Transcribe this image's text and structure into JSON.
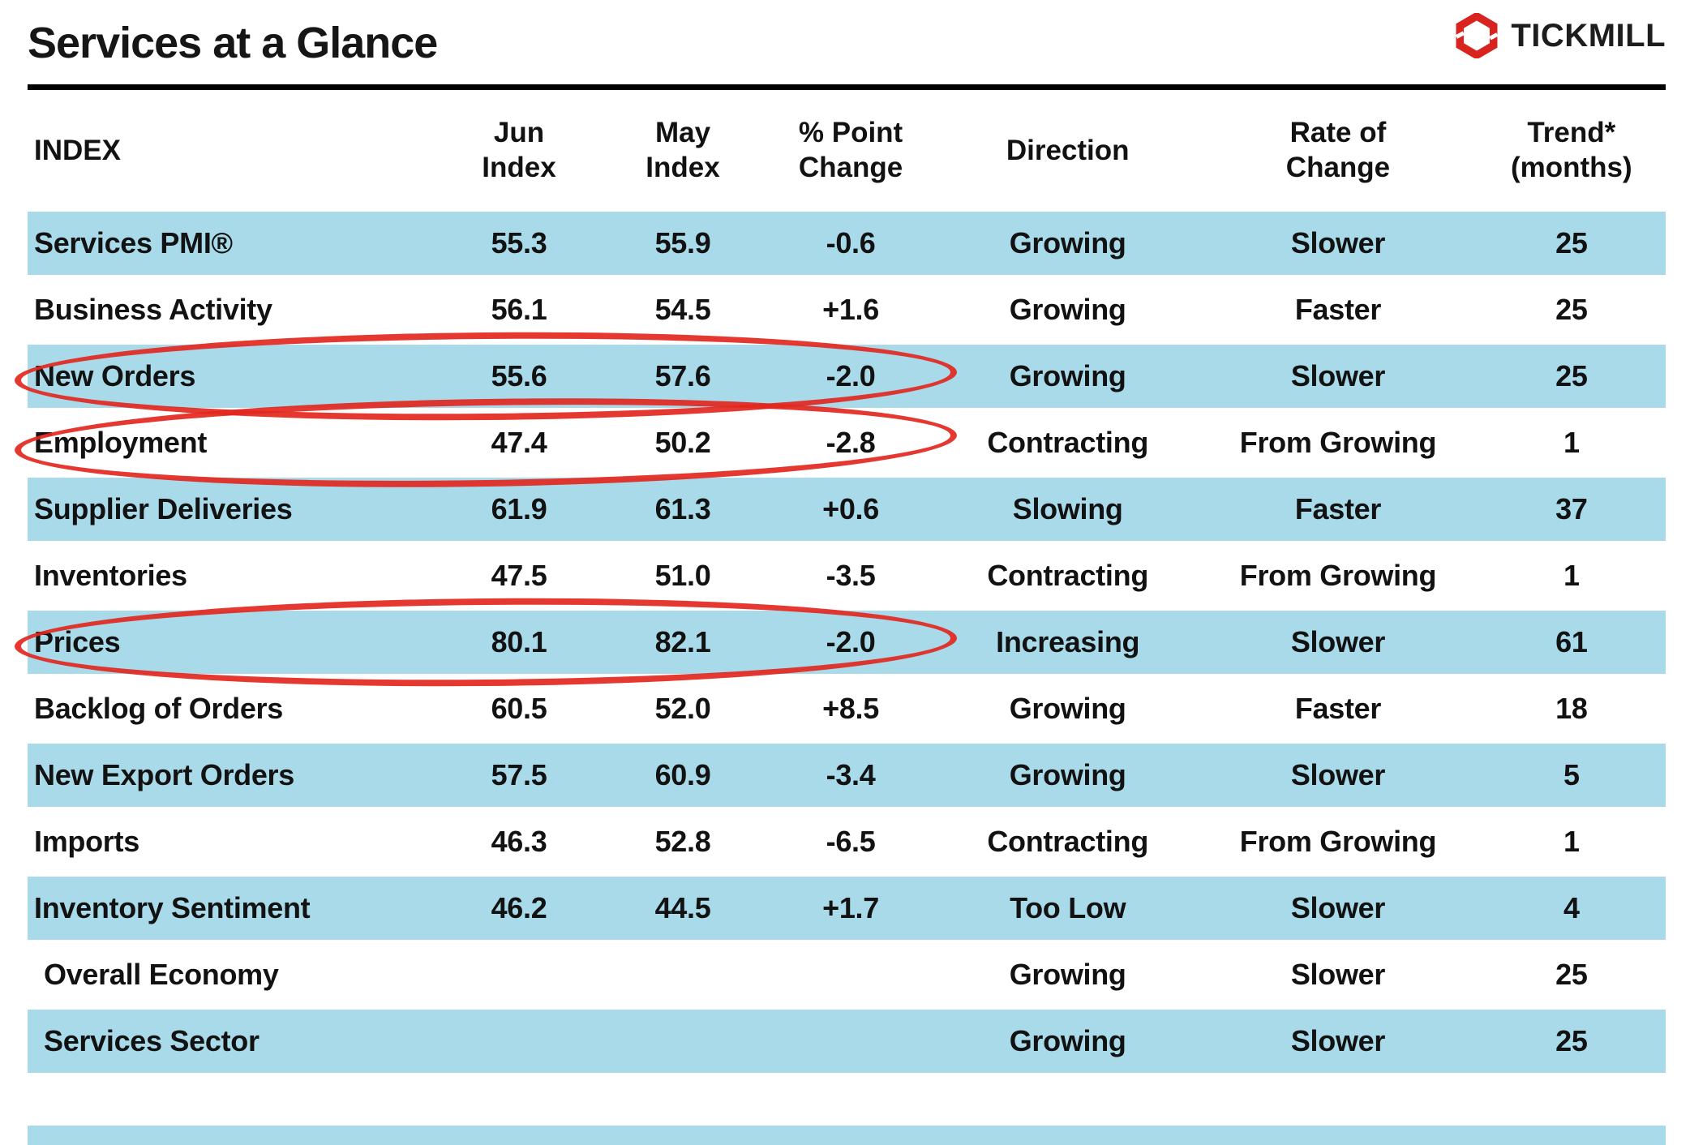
{
  "title": "Services at a Glance",
  "logo": {
    "text": "TICKMILL",
    "icon": "tickmill-hexagon-icon",
    "brand_color": "#d8231f"
  },
  "table": {
    "headers": {
      "index": {
        "l1": "INDEX"
      },
      "jun": {
        "l1": "Jun",
        "l2": "Index"
      },
      "may": {
        "l1": "May",
        "l2": "Index"
      },
      "change": {
        "l1": "% Point",
        "l2": "Change"
      },
      "direction": {
        "l1": "Direction"
      },
      "rate": {
        "l1": "Rate of",
        "l2": "Change"
      },
      "trend": {
        "l1": "Trend*",
        "l2": "(months)"
      }
    },
    "shaded_row_indices": [
      0,
      2,
      4,
      6,
      8,
      10,
      12
    ],
    "bold_row_indices": [
      11,
      12
    ],
    "circled_row_indices": [
      2,
      3,
      6
    ],
    "shade_color": "#a8daea",
    "annotation_color": "#e2271e"
  },
  "chart_data": {
    "type": "table",
    "title": "Services at a Glance",
    "columns": [
      "INDEX",
      "Jun Index",
      "May Index",
      "% Point Change",
      "Direction",
      "Rate of Change",
      "Trend* (months)"
    ],
    "rows": [
      [
        "Services PMI®",
        "55.3",
        "55.9",
        "-0.6",
        "Growing",
        "Slower",
        "25"
      ],
      [
        "Business Activity",
        "56.1",
        "54.5",
        "+1.6",
        "Growing",
        "Faster",
        "25"
      ],
      [
        "New Orders",
        "55.6",
        "57.6",
        "-2.0",
        "Growing",
        "Slower",
        "25"
      ],
      [
        "Employment",
        "47.4",
        "50.2",
        "-2.8",
        "Contracting",
        "From Growing",
        "1"
      ],
      [
        "Supplier Deliveries",
        "61.9",
        "61.3",
        "+0.6",
        "Slowing",
        "Faster",
        "37"
      ],
      [
        "Inventories",
        "47.5",
        "51.0",
        "-3.5",
        "Contracting",
        "From Growing",
        "1"
      ],
      [
        "Prices",
        "80.1",
        "82.1",
        "-2.0",
        "Increasing",
        "Slower",
        "61"
      ],
      [
        "Backlog of Orders",
        "60.5",
        "52.0",
        "+8.5",
        "Growing",
        "Faster",
        "18"
      ],
      [
        "New Export Orders",
        "57.5",
        "60.9",
        "-3.4",
        "Growing",
        "Slower",
        "5"
      ],
      [
        "Imports",
        "46.3",
        "52.8",
        "-6.5",
        "Contracting",
        "From Growing",
        "1"
      ],
      [
        "Inventory Sentiment",
        "46.2",
        "44.5",
        "+1.7",
        "Too Low",
        "Slower",
        "4"
      ],
      [
        "Overall Economy",
        "",
        "",
        "",
        "Growing",
        "Slower",
        "25"
      ],
      [
        "Services Sector",
        "",
        "",
        "",
        "Growing",
        "Slower",
        "25"
      ]
    ],
    "annotated_rows": [
      "New Orders",
      "Employment",
      "Prices"
    ]
  }
}
